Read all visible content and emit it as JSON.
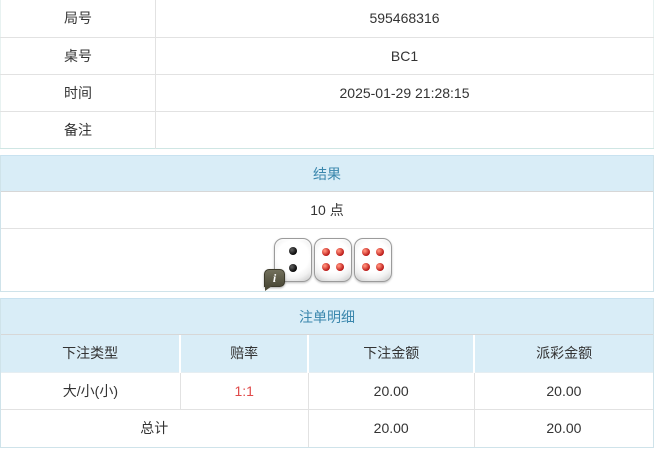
{
  "info_table": {
    "rows": [
      {
        "label": "局号",
        "value": "595468316"
      },
      {
        "label": "桌号",
        "value": "BC1"
      },
      {
        "label": "时间",
        "value": "2025-01-29 21:28:15"
      },
      {
        "label": "备注",
        "value": ""
      }
    ]
  },
  "result_section": {
    "title": "结果",
    "points": "10 点",
    "dice": [
      {
        "value": 2,
        "color": "black"
      },
      {
        "value": 4,
        "color": "red"
      },
      {
        "value": 4,
        "color": "red"
      }
    ],
    "info_icon_label": "i"
  },
  "bet_section": {
    "title": "注单明细",
    "columns": [
      "下注类型",
      "赔率",
      "下注金额",
      "派彩金额"
    ],
    "rows": [
      {
        "bet_type": "大/小(小)",
        "odds": "1:1",
        "bet_amount": "20.00",
        "payout": "20.00"
      }
    ],
    "total": {
      "label": "总计",
      "bet_amount": "20.00",
      "payout": "20.00"
    }
  },
  "colors": {
    "header_bg": "#d9edf7",
    "header_text": "#3a87ad",
    "odds_red": "#e04b4b",
    "body_text": "#333333",
    "inner_border": "#e2e2e2",
    "section_border": "#cfe3ea"
  }
}
